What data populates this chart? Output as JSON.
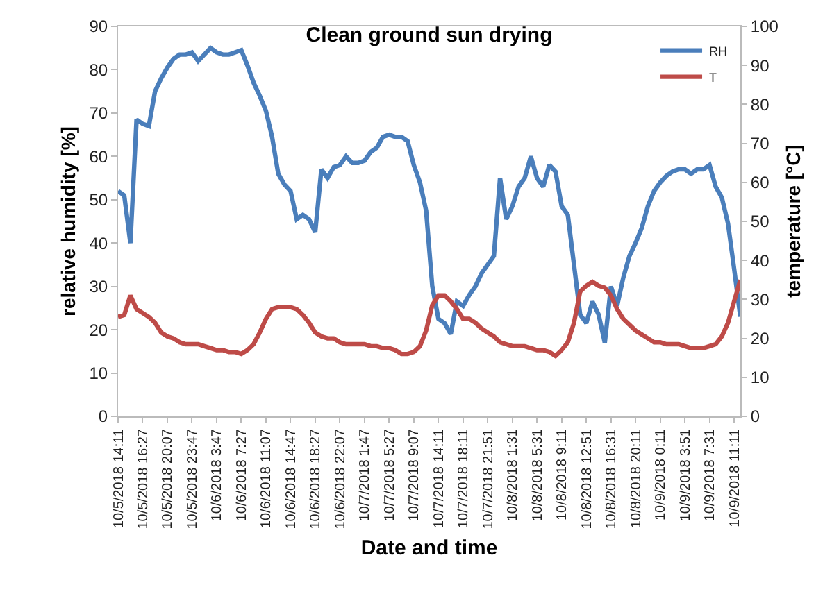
{
  "chart_data": {
    "type": "line",
    "title": "Clean ground sun drying",
    "xlabel": "Date and time",
    "ylabel": "relative humidity [%]",
    "y2label": "temperature [°C]",
    "categories": [
      "10/5/2018 14:11",
      null,
      null,
      null,
      "10/5/2018 16:27",
      null,
      null,
      null,
      "10/5/2018 20:07",
      null,
      null,
      null,
      "10/5/2018 23:47",
      null,
      null,
      null,
      "10/6/2018 3:47",
      null,
      null,
      null,
      "10/6/2018 7:27",
      null,
      null,
      null,
      "10/6/2018 11:07",
      null,
      null,
      null,
      "10/6/2018 14:47",
      null,
      null,
      null,
      "10/6/2018 18:27",
      null,
      null,
      null,
      "10/6/2018 22:07",
      null,
      null,
      null,
      "10/7/2018 1:47",
      null,
      null,
      null,
      "10/7/2018 5:27",
      null,
      null,
      null,
      "10/7/2018 9:07",
      null,
      null,
      null,
      "10/7/2018 14:11",
      null,
      null,
      null,
      "10/7/2018 18:11",
      null,
      null,
      null,
      "10/7/2018 21:51",
      null,
      null,
      null,
      "10/8/2018 1:31",
      null,
      null,
      null,
      "10/8/2018 5:31",
      null,
      null,
      null,
      "10/8/2018 9:11",
      null,
      null,
      null,
      "10/8/2018 12:51",
      null,
      null,
      null,
      "10/8/2018 16:31",
      null,
      null,
      null,
      "10/8/2018 20:11",
      null,
      null,
      null,
      "10/9/2018 0:11",
      null,
      null,
      null,
      "10/9/2018 3:51",
      null,
      null,
      null,
      "10/9/2018 7:31",
      null,
      null,
      null,
      "10/9/2018 11:11",
      null
    ],
    "series": [
      {
        "name": "RH",
        "color": "#4a7ebb",
        "values": [
          52,
          51,
          40,
          68.5,
          67.5,
          67,
          75,
          78,
          80.5,
          82.5,
          83.5,
          83.5,
          84,
          82,
          83.5,
          85,
          84,
          83.5,
          83.5,
          84,
          84.5,
          81,
          77,
          74,
          70.5,
          64.5,
          56,
          53.5,
          52,
          45.5,
          46.5,
          45.5,
          42.5,
          57,
          55,
          57.5,
          58,
          60,
          58.5,
          58.5,
          59,
          61,
          62,
          64.5,
          65,
          64.5,
          64.5,
          63.5,
          58,
          54,
          47.5,
          30,
          22.5,
          21.5,
          19,
          26.5,
          25.5,
          28,
          30,
          33,
          35,
          37,
          55,
          45.5,
          48.5,
          53,
          55,
          60,
          55,
          53,
          58,
          56.5,
          48.5,
          46.5,
          35,
          23.5,
          21.5,
          26.5,
          23.5,
          17,
          30,
          25.5,
          32,
          37,
          40,
          43.5,
          48.5,
          52,
          54,
          55.5,
          56.5,
          57,
          57,
          56,
          57,
          57,
          58,
          53,
          50.5,
          44.5,
          34,
          23
        ]
      },
      {
        "name": "T",
        "color": "#be4b48",
        "axis": "y2",
        "values": [
          25.5,
          26,
          31,
          27.5,
          26.5,
          25.5,
          24,
          21.5,
          20.5,
          20,
          19,
          18.5,
          18.5,
          18.5,
          18,
          17.5,
          17,
          17,
          16.5,
          16.5,
          16,
          17,
          18.5,
          21.5,
          25,
          27.5,
          28,
          28,
          28,
          27.5,
          26,
          24,
          21.5,
          20.5,
          20,
          20,
          19,
          18.5,
          18.5,
          18.5,
          18.5,
          18,
          18,
          17.5,
          17.5,
          17,
          16,
          16,
          16.5,
          18,
          22,
          28.5,
          31,
          31,
          29.5,
          27.5,
          25,
          25,
          24,
          22.5,
          21.5,
          20.5,
          19,
          18.5,
          18,
          18,
          18,
          17.5,
          17,
          17,
          16.5,
          15.5,
          17,
          19,
          24,
          32,
          33.5,
          34.5,
          33.5,
          33,
          31,
          27.5,
          25,
          23.5,
          22,
          21,
          20,
          19,
          19,
          18.5,
          18.5,
          18.5,
          18,
          17.5,
          17.5,
          17.5,
          18,
          18.5,
          20.5,
          24,
          29.5,
          35
        ]
      }
    ],
    "ylim": [
      0,
      90
    ],
    "yticks": [
      0,
      10,
      20,
      30,
      40,
      50,
      60,
      70,
      80,
      90
    ],
    "y2lim": [
      0,
      100
    ],
    "y2ticks": [
      0,
      10,
      20,
      30,
      40,
      50,
      60,
      70,
      80,
      90,
      100
    ],
    "legend": "top right",
    "marker": "none",
    "line_style": "solid"
  }
}
